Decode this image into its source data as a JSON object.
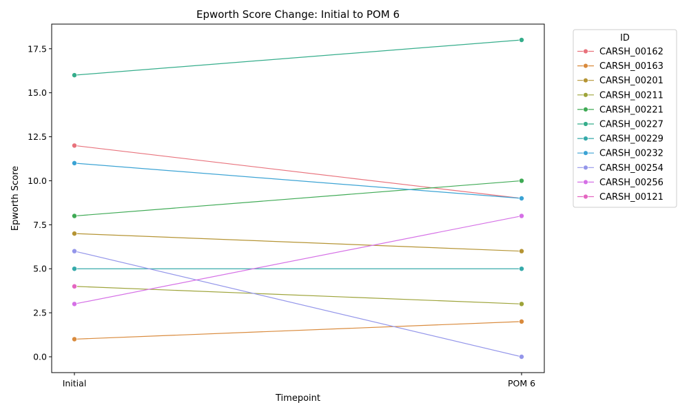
{
  "chart_data": {
    "type": "line",
    "title": "Epworth Score Change: Initial to POM 6",
    "xlabel": "Timepoint",
    "ylabel": "Epworth Score",
    "categories": [
      "Initial",
      "POM 6"
    ],
    "ylim": [
      -0.9,
      18.9
    ],
    "yticks": [
      0.0,
      2.5,
      5.0,
      7.5,
      10.0,
      12.5,
      15.0,
      17.5
    ],
    "ytick_labels": [
      "0.0",
      "2.5",
      "5.0",
      "7.5",
      "10.0",
      "12.5",
      "15.0",
      "17.5"
    ],
    "grid": false,
    "legend": {
      "title": "ID",
      "placement": "outside-top-right"
    },
    "series": [
      {
        "name": "CARSH_00162",
        "color": "#e8727c",
        "values": [
          12,
          9
        ]
      },
      {
        "name": "CARSH_00163",
        "color": "#d98a3c",
        "values": [
          1,
          2
        ]
      },
      {
        "name": "CARSH_00201",
        "color": "#b59434",
        "values": [
          7,
          6
        ]
      },
      {
        "name": "CARSH_00211",
        "color": "#9da339",
        "values": [
          4,
          3
        ]
      },
      {
        "name": "CARSH_00221",
        "color": "#3faa55",
        "values": [
          8,
          10
        ]
      },
      {
        "name": "CARSH_00227",
        "color": "#35ad8b",
        "values": [
          16,
          18
        ]
      },
      {
        "name": "CARSH_00229",
        "color": "#36aaaa",
        "values": [
          5,
          5
        ]
      },
      {
        "name": "CARSH_00232",
        "color": "#3ba3d4",
        "values": [
          11,
          9
        ]
      },
      {
        "name": "CARSH_00254",
        "color": "#9496ea",
        "values": [
          6,
          0
        ]
      },
      {
        "name": "CARSH_00256",
        "color": "#d570e6",
        "values": [
          3,
          8
        ]
      },
      {
        "name": "CARSH_00121",
        "color": "#e466c1",
        "values": [
          4,
          null
        ]
      }
    ]
  }
}
